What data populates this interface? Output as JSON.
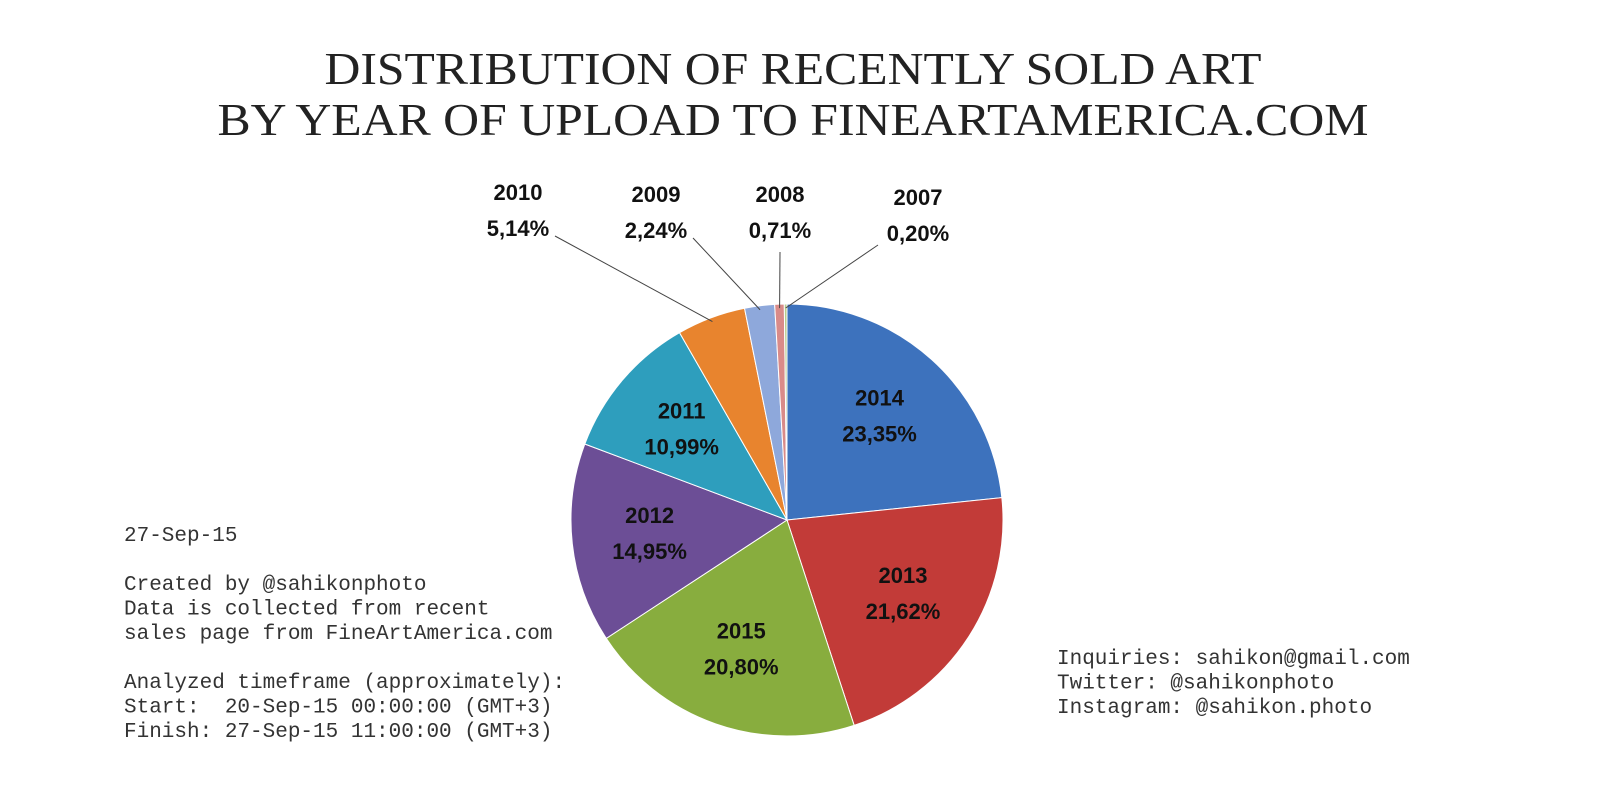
{
  "chart_data": {
    "type": "pie",
    "title_lines": [
      "DISTRIBUTION OF RECENTLY SOLD ART",
      "BY YEAR OF UPLOAD TO FINEARTAMERICA.COM"
    ],
    "categories": [
      "2014",
      "2013",
      "2015",
      "2012",
      "2011",
      "2010",
      "2009",
      "2008",
      "2007"
    ],
    "values": [
      23.35,
      21.62,
      20.8,
      14.95,
      10.99,
      5.14,
      2.24,
      0.71,
      0.2
    ],
    "value_labels": [
      "23,35%",
      "21,62%",
      "20,80%",
      "14,95%",
      "10,99%",
      "5,14%",
      "2,24%",
      "0,71%",
      "0,20%"
    ],
    "colors": [
      "#3d72bd",
      "#c23b38",
      "#88ad3e",
      "#6c4e96",
      "#2e9ebd",
      "#e8842e",
      "#8ea8db",
      "#d98b89",
      "#b8cc8e"
    ],
    "annotations": {
      "left": [
        [
          "27-Sep-15"
        ],
        [
          "Created by @sahikonphoto",
          "Data is collected from recent",
          "sales page from FineArtAmerica.com"
        ],
        [
          "Analyzed timeframe (approximately):",
          "Start:  20-Sep-15 00:00:00 (GMT+3)",
          "Finish: 27-Sep-15 11:00:00 (GMT+3)"
        ]
      ],
      "right": [
        [
          "Inquiries: sahikon@gmail.com",
          "Twitter: @sahikonphoto",
          "Instagram: @sahikon.photo"
        ]
      ]
    }
  }
}
